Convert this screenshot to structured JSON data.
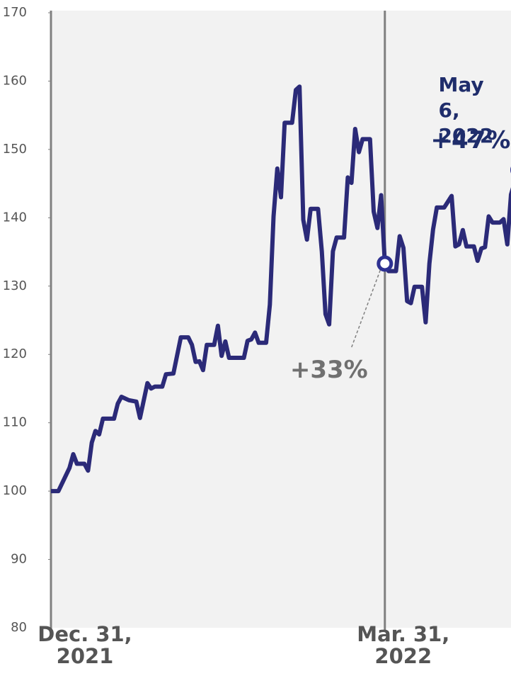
{
  "chart_data": {
    "type": "line",
    "x": [
      "2021-12-31",
      "2022-01-02",
      "2022-01-05",
      "2022-01-06",
      "2022-01-07",
      "2022-01-09",
      "2022-01-10",
      "2022-01-11",
      "2022-01-12",
      "2022-01-13",
      "2022-01-14",
      "2022-01-17",
      "2022-01-18",
      "2022-01-19",
      "2022-01-21",
      "2022-01-23",
      "2022-01-24",
      "2022-01-26",
      "2022-01-27",
      "2022-01-28",
      "2022-01-30",
      "2022-01-31",
      "2022-02-02",
      "2022-02-04",
      "2022-02-06",
      "2022-02-07",
      "2022-02-08",
      "2022-02-09",
      "2022-02-10",
      "2022-02-11",
      "2022-02-13",
      "2022-02-14",
      "2022-02-15",
      "2022-02-16",
      "2022-02-17",
      "2022-02-21",
      "2022-02-22",
      "2022-02-23",
      "2022-02-24",
      "2022-02-25",
      "2022-02-27",
      "2022-02-28",
      "2022-03-01",
      "2022-03-02",
      "2022-03-03",
      "2022-03-04",
      "2022-03-06",
      "2022-03-07",
      "2022-03-08",
      "2022-03-09",
      "2022-03-10",
      "2022-03-11",
      "2022-03-13",
      "2022-03-14",
      "2022-03-15",
      "2022-03-16",
      "2022-03-17",
      "2022-03-18",
      "2022-03-20",
      "2022-03-21",
      "2022-03-22",
      "2022-03-23",
      "2022-03-24",
      "2022-03-25",
      "2022-03-27",
      "2022-03-28",
      "2022-03-29",
      "2022-03-30",
      "2022-03-31",
      "2022-04-01",
      "2022-04-03",
      "2022-04-04",
      "2022-04-05",
      "2022-04-06",
      "2022-04-07",
      "2022-04-08",
      "2022-04-10",
      "2022-04-11",
      "2022-04-12",
      "2022-04-13",
      "2022-04-14",
      "2022-04-16",
      "2022-04-18",
      "2022-04-19",
      "2022-04-20",
      "2022-04-21",
      "2022-04-22",
      "2022-04-24",
      "2022-04-25",
      "2022-04-26",
      "2022-04-27",
      "2022-04-28",
      "2022-04-29",
      "2022-05-01",
      "2022-05-02",
      "2022-05-03",
      "2022-05-04",
      "2022-05-06"
    ],
    "values": [
      100,
      100,
      103.4,
      105.4,
      104,
      104,
      103,
      107.1,
      108.8,
      108.3,
      110.6,
      110.6,
      112.8,
      113.8,
      113.3,
      113.1,
      110.7,
      115.8,
      115,
      115.3,
      115.3,
      117.1,
      117.2,
      122.5,
      122.5,
      121.4,
      118.9,
      119,
      117.7,
      121.4,
      121.4,
      124.2,
      119.8,
      121.9,
      119.5,
      119.5,
      122,
      122.2,
      123.2,
      121.7,
      121.7,
      127.3,
      140.2,
      147.2,
      143,
      153.9,
      153.9,
      158.7,
      159.2,
      139.7,
      136.8,
      141.3,
      141.3,
      135.1,
      125.9,
      124.4,
      135.1,
      137.1,
      137.1,
      145.9,
      145.1,
      153,
      149.6,
      151.5,
      151.5,
      140.9,
      138.5,
      143.3,
      133.3,
      132.2,
      132.2,
      137.3,
      135.6,
      127.8,
      127.5,
      129.9,
      129.9,
      124.7,
      133.3,
      138.3,
      141.5,
      141.5,
      143.2,
      135.8,
      136.1,
      138.2,
      135.8,
      135.8,
      133.7,
      135.5,
      135.7,
      140.2,
      139.3,
      139.3,
      139.8,
      136.1,
      143.4,
      147
    ],
    "color": "#2b2a78",
    "xlim": [
      "2021-12-31",
      "2022-05-04"
    ],
    "xticks": [
      {
        "value": "2021-12-31",
        "label": "Dec. 31,\n2021"
      },
      {
        "value": "2022-03-31",
        "label": "Mar. 31,\n2022"
      }
    ],
    "ylim": [
      80,
      170
    ],
    "yticks": [
      80,
      90,
      100,
      110,
      120,
      130,
      140,
      150,
      160,
      170
    ],
    "annotations": [
      {
        "text": "+33%",
        "x": "2022-03-31"
      },
      {
        "text": "May 6,\n2022",
        "x": "2022-05-06"
      },
      {
        "text": "+47%",
        "x": "2022-05-06"
      }
    ]
  }
}
